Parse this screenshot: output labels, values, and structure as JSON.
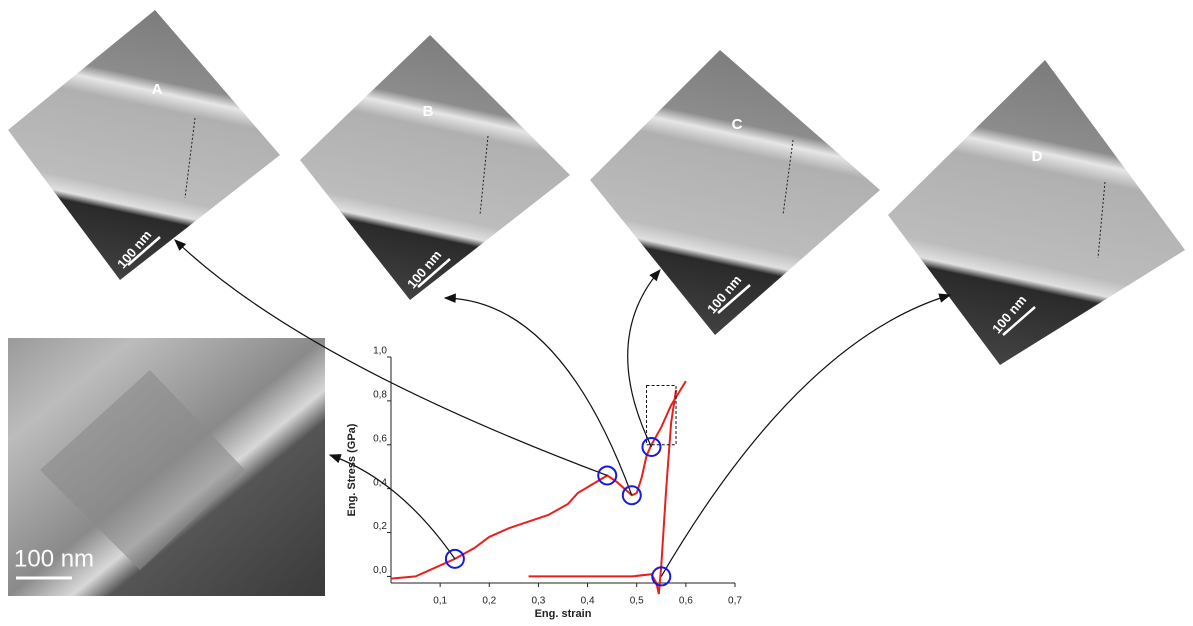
{
  "chart_data": {
    "type": "line",
    "xlabel": "Eng. strain",
    "ylabel": "Eng. Stress (GPa)",
    "xlim": [
      0,
      0.7
    ],
    "ylim": [
      -0.03,
      1.0
    ],
    "xticks": [
      {
        "value": 0.1,
        "label": "0,1"
      },
      {
        "value": 0.2,
        "label": "0,2"
      },
      {
        "value": 0.3,
        "label": "0,3"
      },
      {
        "value": 0.4,
        "label": "0,4"
      },
      {
        "value": 0.5,
        "label": "0,5"
      },
      {
        "value": 0.6,
        "label": "0,6"
      },
      {
        "value": 0.7,
        "label": "0,7"
      }
    ],
    "yticks": [
      {
        "value": 0,
        "label": "0,0"
      },
      {
        "value": 0.2,
        "label": "0,2"
      },
      {
        "value": 0.4,
        "label": "0,4"
      },
      {
        "value": 0.6,
        "label": "0,6"
      },
      {
        "value": 0.8,
        "label": "0,8"
      },
      {
        "value": 1.0,
        "label": "1,0"
      }
    ],
    "series": [
      {
        "color": "#e8201e",
        "x": [
          0,
          0.05,
          0.1,
          0.13,
          0.17,
          0.2,
          0.24,
          0.28,
          0.32,
          0.36,
          0.38,
          0.41,
          0.44,
          0.46,
          0.48,
          0.49,
          0.5,
          0.51,
          0.52,
          0.53,
          0.55,
          0.57,
          0.6
        ],
        "values": [
          -0.01,
          0.0,
          0.05,
          0.08,
          0.13,
          0.18,
          0.22,
          0.25,
          0.28,
          0.33,
          0.38,
          0.42,
          0.46,
          0.43,
          0.39,
          0.37,
          0.38,
          0.45,
          0.55,
          0.6,
          0.68,
          0.78,
          0.89
        ]
      },
      {
        "color": "#e8201e",
        "x": [
          0.28,
          0.35,
          0.42,
          0.49,
          0.53,
          0.54,
          0.545,
          0.55,
          0.56,
          0.57,
          0.58
        ],
        "values": [
          0.0,
          0.0,
          0.0,
          0.0,
          0.01,
          -0.03,
          -0.08,
          0.05,
          0.4,
          0.7,
          0.85
        ]
      }
    ],
    "markers": [
      {
        "x": 0.13,
        "y": 0.08
      },
      {
        "x": 0.44,
        "y": 0.46
      },
      {
        "x": 0.49,
        "y": 0.37
      },
      {
        "x": 0.53,
        "y": 0.59
      },
      {
        "x": 0.55,
        "y": 0.0
      }
    ],
    "marker_color": "#1a1adb",
    "zoom_box": {
      "x": [
        0.52,
        0.58
      ],
      "y": [
        0.6,
        0.87
      ]
    },
    "panels": [
      {
        "label": "A",
        "scale_bar": "100 nm"
      },
      {
        "label": "B",
        "scale_bar": "100 nm"
      },
      {
        "label": "C",
        "scale_bar": "100 nm"
      },
      {
        "label": "D",
        "scale_bar": "100 nm"
      }
    ],
    "inset": {
      "scale_bar": "100 nm"
    }
  }
}
